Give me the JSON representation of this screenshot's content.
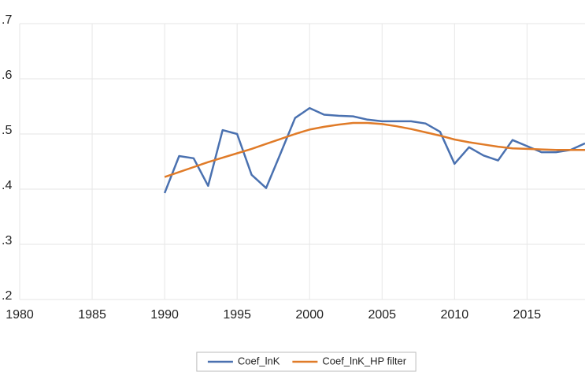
{
  "chart_data": {
    "type": "line",
    "x": [
      1990,
      1991,
      1992,
      1993,
      1994,
      1995,
      1996,
      1997,
      1998,
      1999,
      2000,
      2001,
      2002,
      2003,
      2004,
      2005,
      2006,
      2007,
      2008,
      2009,
      2010,
      2011,
      2012,
      2013,
      2014,
      2015,
      2016,
      2017,
      2018,
      2019
    ],
    "series": [
      {
        "name": "Coef_lnK",
        "color": "#4a71b0",
        "values": [
          0.393,
          0.46,
          0.456,
          0.406,
          0.507,
          0.5,
          0.426,
          0.402,
          0.465,
          0.529,
          0.547,
          0.535,
          0.533,
          0.532,
          0.526,
          0.523,
          0.523,
          0.523,
          0.519,
          0.504,
          0.446,
          0.476,
          0.461,
          0.452,
          0.489,
          0.478,
          0.467,
          0.467,
          0.471,
          0.483
        ]
      },
      {
        "name": "Coef_lnK_HP filter",
        "color": "#e07b28",
        "values": [
          0.422,
          0.431,
          0.44,
          0.449,
          0.457,
          0.465,
          0.473,
          0.482,
          0.491,
          0.5,
          0.508,
          0.513,
          0.517,
          0.52,
          0.52,
          0.518,
          0.514,
          0.509,
          0.503,
          0.497,
          0.49,
          0.485,
          0.481,
          0.477,
          0.474,
          0.473,
          0.472,
          0.471,
          0.471,
          0.471
        ]
      }
    ],
    "xlim": [
      1980,
      2019
    ],
    "xticks": [
      1980,
      1985,
      1990,
      1995,
      2000,
      2005,
      2010,
      2015
    ],
    "ylim": [
      0.2,
      0.7
    ],
    "yticks": [
      {
        "value": 0.2,
        "label": ".2"
      },
      {
        "value": 0.3,
        "label": ".3"
      },
      {
        "value": 0.4,
        "label": ".4"
      },
      {
        "value": 0.5,
        "label": ".5"
      },
      {
        "value": 0.6,
        "label": ".6"
      },
      {
        "value": 0.7,
        "label": ".7"
      }
    ],
    "grid": true,
    "legend": "bottom"
  }
}
